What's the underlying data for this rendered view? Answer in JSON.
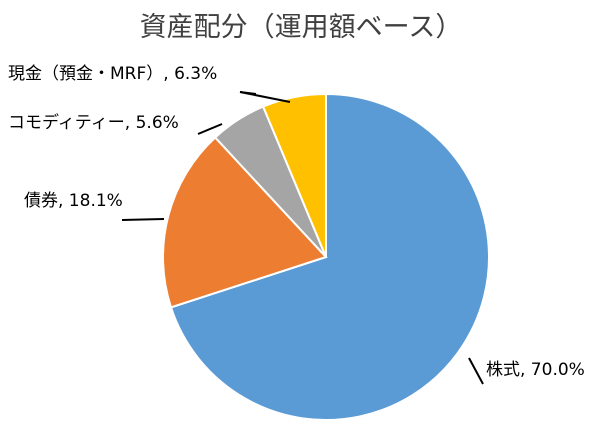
{
  "chart_data": {
    "type": "pie",
    "title": "資産配分（運用額ベース）",
    "slices": [
      {
        "label": "株式",
        "value": 70.0,
        "display": "株式, 70.0%",
        "color": "#5B9BD5"
      },
      {
        "label": "債券",
        "value": 18.1,
        "display": "債券, 18.1%",
        "color": "#ED7D31"
      },
      {
        "label": "コモディティー",
        "value": 5.6,
        "display": "コモディティー, 5.6%",
        "color": "#A5A5A5"
      },
      {
        "label": "現金（預金・MRF）",
        "value": 6.3,
        "display": "現金（預金・MRF）, 6.3%",
        "color": "#FFC000"
      }
    ],
    "start": "12 o'clock",
    "direction": "clockwise",
    "legend": "none"
  }
}
